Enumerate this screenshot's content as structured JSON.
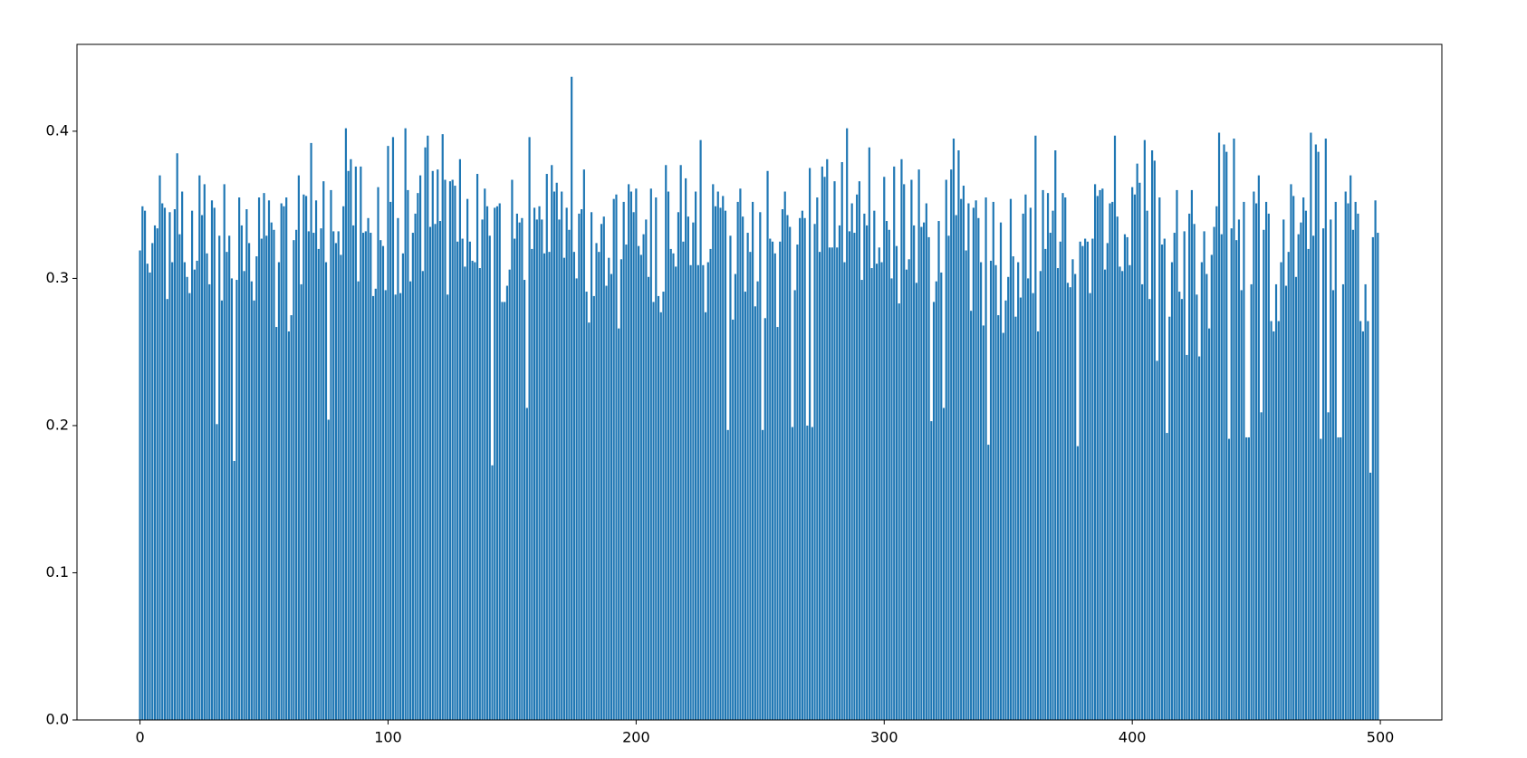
{
  "chart_data": {
    "type": "bar",
    "color": "#1f77b4",
    "bar_width": 0.8,
    "x": [
      0,
      1,
      2,
      3,
      4,
      5,
      6,
      7,
      8,
      9,
      10,
      11,
      12,
      13,
      14,
      15,
      16,
      17,
      18,
      19,
      20,
      21,
      22,
      23,
      24,
      25,
      26,
      27,
      28,
      29,
      30,
      31,
      32,
      33,
      34,
      35,
      36,
      37,
      38,
      39,
      40,
      41,
      42,
      43,
      44,
      45,
      46,
      47,
      48,
      49,
      50,
      51,
      52,
      53,
      54,
      55,
      56,
      57,
      58,
      59,
      60,
      61,
      62,
      63,
      64,
      65,
      66,
      67,
      68,
      69,
      70,
      71,
      72,
      73,
      74,
      75,
      76,
      77,
      78,
      79,
      80,
      81,
      82,
      83,
      84,
      85,
      86,
      87,
      88,
      89,
      90,
      91,
      92,
      93,
      94,
      95,
      96,
      97,
      98,
      99,
      100,
      101,
      102,
      103,
      104,
      105,
      106,
      107,
      108,
      109,
      110,
      111,
      112,
      113,
      114,
      115,
      116,
      117,
      118,
      119,
      120,
      121,
      122,
      123,
      124,
      125,
      126,
      127,
      128,
      129,
      130,
      131,
      132,
      133,
      134,
      135,
      136,
      137,
      138,
      139,
      140,
      141,
      142,
      143,
      144,
      145,
      146,
      147,
      148,
      149,
      150,
      151,
      152,
      153,
      154,
      155,
      156,
      157,
      158,
      159,
      160,
      161,
      162,
      163,
      164,
      165,
      166,
      167,
      168,
      169,
      170,
      171,
      172,
      173,
      174,
      175,
      176,
      177,
      178,
      179,
      180,
      181,
      182,
      183,
      184,
      185,
      186,
      187,
      188,
      189,
      190,
      191,
      192,
      193,
      194,
      195,
      196,
      197,
      198,
      199,
      200,
      201,
      202,
      203,
      204,
      205,
      206,
      207,
      208,
      209,
      210,
      211,
      212,
      213,
      214,
      215,
      216,
      217,
      218,
      219,
      220,
      221,
      222,
      223,
      224,
      225,
      226,
      227,
      228,
      229,
      230,
      231,
      232,
      233,
      234,
      235,
      236,
      237,
      238,
      239,
      240,
      241,
      242,
      243,
      244,
      245,
      246,
      247,
      248,
      249,
      250,
      251,
      252,
      253,
      254,
      255,
      256,
      257,
      258,
      259,
      260,
      261,
      262,
      263,
      264,
      265,
      266,
      267,
      268,
      269,
      270,
      271,
      272,
      273,
      274,
      275,
      276,
      277,
      278,
      279,
      280,
      281,
      282,
      283,
      284,
      285,
      286,
      287,
      288,
      289,
      290,
      291,
      292,
      293,
      294,
      295,
      296,
      297,
      298,
      299,
      300,
      301,
      302,
      303,
      304,
      305,
      306,
      307,
      308,
      309,
      310,
      311,
      312,
      313,
      314,
      315,
      316,
      317,
      318,
      319,
      320,
      321,
      322,
      323,
      324,
      325,
      326,
      327,
      328,
      329,
      330,
      331,
      332,
      333,
      334,
      335,
      336,
      337,
      338,
      339,
      340,
      341,
      342,
      343,
      344,
      345,
      346,
      347,
      348,
      349,
      350,
      351,
      352,
      353,
      354,
      355,
      356,
      357,
      358,
      359,
      360,
      361,
      362,
      363,
      364,
      365,
      366,
      367,
      368,
      369,
      370,
      371,
      372,
      373,
      374,
      375,
      376,
      377,
      378,
      379,
      380,
      381,
      382,
      383,
      384,
      385,
      386,
      387,
      388,
      389,
      390,
      391,
      392,
      393,
      394,
      395,
      396,
      397,
      398,
      399,
      400,
      401,
      402,
      403,
      404,
      405,
      406,
      407,
      408,
      409,
      410,
      411,
      412,
      413,
      414,
      415,
      416,
      417,
      418,
      419,
      420,
      421,
      422,
      423,
      424,
      425,
      426,
      427,
      428,
      429,
      430,
      431,
      432,
      433,
      434,
      435,
      436,
      437,
      438,
      439,
      440,
      441,
      442,
      443,
      444,
      445,
      446,
      447,
      448,
      449,
      450,
      451,
      452,
      453,
      454,
      455,
      456,
      457,
      458,
      459,
      460,
      461,
      462,
      463,
      464,
      465,
      466,
      467,
      468,
      469,
      470,
      471,
      472,
      473,
      474,
      475,
      476,
      477,
      478,
      479,
      480,
      481,
      482,
      483,
      484,
      485,
      486,
      487,
      488,
      489,
      490,
      491,
      492,
      493,
      494,
      495,
      496,
      497,
      498,
      499
    ],
    "values": [
      0.319,
      0.349,
      0.346,
      0.31,
      0.304,
      0.324,
      0.336,
      0.334,
      0.37,
      0.351,
      0.348,
      0.286,
      0.345,
      0.311,
      0.347,
      0.385,
      0.33,
      0.359,
      0.311,
      0.301,
      0.29,
      0.346,
      0.306,
      0.312,
      0.37,
      0.343,
      0.364,
      0.317,
      0.296,
      0.353,
      0.348,
      0.201,
      0.329,
      0.285,
      0.364,
      0.318,
      0.329,
      0.3,
      0.176,
      0.299,
      0.355,
      0.336,
      0.305,
      0.347,
      0.324,
      0.298,
      0.285,
      0.315,
      0.355,
      0.327,
      0.358,
      0.329,
      0.353,
      0.338,
      0.333,
      0.267,
      0.311,
      0.351,
      0.349,
      0.355,
      0.264,
      0.275,
      0.326,
      0.333,
      0.37,
      0.296,
      0.357,
      0.356,
      0.332,
      0.392,
      0.331,
      0.353,
      0.32,
      0.334,
      0.366,
      0.311,
      0.204,
      0.36,
      0.332,
      0.324,
      0.332,
      0.316,
      0.349,
      0.402,
      0.373,
      0.381,
      0.336,
      0.376,
      0.298,
      0.376,
      0.331,
      0.332,
      0.341,
      0.331,
      0.288,
      0.293,
      0.362,
      0.326,
      0.322,
      0.292,
      0.39,
      0.352,
      0.396,
      0.289,
      0.341,
      0.29,
      0.317,
      0.402,
      0.36,
      0.298,
      0.331,
      0.344,
      0.358,
      0.37,
      0.305,
      0.389,
      0.397,
      0.335,
      0.373,
      0.337,
      0.374,
      0.339,
      0.398,
      0.367,
      0.289,
      0.366,
      0.367,
      0.363,
      0.325,
      0.381,
      0.327,
      0.308,
      0.354,
      0.325,
      0.312,
      0.311,
      0.371,
      0.307,
      0.34,
      0.361,
      0.349,
      0.329,
      0.173,
      0.348,
      0.349,
      0.351,
      0.284,
      0.284,
      0.295,
      0.306,
      0.367,
      0.327,
      0.344,
      0.338,
      0.341,
      0.299,
      0.212,
      0.396,
      0.32,
      0.348,
      0.34,
      0.349,
      0.34,
      0.317,
      0.371,
      0.318,
      0.377,
      0.359,
      0.365,
      0.34,
      0.359,
      0.314,
      0.348,
      0.333,
      0.437,
      0.318,
      0.3,
      0.344,
      0.347,
      0.374,
      0.291,
      0.27,
      0.345,
      0.288,
      0.324,
      0.318,
      0.337,
      0.342,
      0.295,
      0.314,
      0.303,
      0.354,
      0.357,
      0.266,
      0.313,
      0.352,
      0.323,
      0.364,
      0.359,
      0.345,
      0.361,
      0.322,
      0.316,
      0.33,
      0.34,
      0.301,
      0.361,
      0.284,
      0.355,
      0.288,
      0.277,
      0.291,
      0.377,
      0.359,
      0.32,
      0.317,
      0.308,
      0.345,
      0.377,
      0.325,
      0.368,
      0.342,
      0.309,
      0.338,
      0.359,
      0.309,
      0.394,
      0.309,
      0.277,
      0.311,
      0.32,
      0.364,
      0.349,
      0.359,
      0.348,
      0.356,
      0.346,
      0.197,
      0.329,
      0.272,
      0.303,
      0.352,
      0.361,
      0.342,
      0.291,
      0.331,
      0.318,
      0.352,
      0.281,
      0.298,
      0.345,
      0.197,
      0.273,
      0.373,
      0.327,
      0.325,
      0.317,
      0.267,
      0.325,
      0.347,
      0.359,
      0.343,
      0.335,
      0.199,
      0.292,
      0.323,
      0.341,
      0.346,
      0.341,
      0.2,
      0.375,
      0.199,
      0.337,
      0.355,
      0.318,
      0.376,
      0.369,
      0.381,
      0.321,
      0.321,
      0.366,
      0.321,
      0.336,
      0.379,
      0.311,
      0.402,
      0.332,
      0.351,
      0.331,
      0.357,
      0.366,
      0.299,
      0.344,
      0.336,
      0.389,
      0.307,
      0.346,
      0.31,
      0.321,
      0.311,
      0.369,
      0.339,
      0.333,
      0.3,
      0.376,
      0.322,
      0.283,
      0.381,
      0.364,
      0.306,
      0.313,
      0.367,
      0.336,
      0.297,
      0.374,
      0.335,
      0.338,
      0.351,
      0.328,
      0.203,
      0.284,
      0.298,
      0.339,
      0.304,
      0.212,
      0.367,
      0.329,
      0.374,
      0.395,
      0.343,
      0.387,
      0.354,
      0.363,
      0.319,
      0.351,
      0.278,
      0.348,
      0.353,
      0.341,
      0.311,
      0.268,
      0.355,
      0.187,
      0.312,
      0.352,
      0.309,
      0.275,
      0.338,
      0.263,
      0.285,
      0.301,
      0.354,
      0.315,
      0.274,
      0.311,
      0.287,
      0.344,
      0.357,
      0.3,
      0.348,
      0.29,
      0.397,
      0.264,
      0.305,
      0.36,
      0.32,
      0.358,
      0.331,
      0.346,
      0.387,
      0.307,
      0.325,
      0.358,
      0.355,
      0.297,
      0.294,
      0.313,
      0.303,
      0.186,
      0.325,
      0.322,
      0.327,
      0.325,
      0.29,
      0.327,
      0.364,
      0.356,
      0.36,
      0.361,
      0.306,
      0.324,
      0.351,
      0.352,
      0.397,
      0.342,
      0.308,
      0.305,
      0.33,
      0.328,
      0.309,
      0.362,
      0.357,
      0.378,
      0.365,
      0.296,
      0.394,
      0.346,
      0.286,
      0.387,
      0.38,
      0.244,
      0.355,
      0.323,
      0.327,
      0.195,
      0.274,
      0.311,
      0.331,
      0.36,
      0.291,
      0.286,
      0.332,
      0.248,
      0.344,
      0.36,
      0.337,
      0.289,
      0.247,
      0.311,
      0.332,
      0.303,
      0.266,
      0.316,
      0.335,
      0.349,
      0.399,
      0.33,
      0.391,
      0.386,
      0.191,
      0.334,
      0.395,
      0.326,
      0.34,
      0.292,
      0.352,
      0.192,
      0.192,
      0.296,
      0.359,
      0.351,
      0.37,
      0.209,
      0.333,
      0.352,
      0.344,
      0.271,
      0.264,
      0.296,
      0.271,
      0.311,
      0.34,
      0.295,
      0.318,
      0.364,
      0.356,
      0.301,
      0.33,
      0.338,
      0.355,
      0.346,
      0.32,
      0.399,
      0.329,
      0.391,
      0.386,
      0.191,
      0.334,
      0.395,
      0.209,
      0.34,
      0.292,
      0.352,
      0.192,
      0.192,
      0.296,
      0.359,
      0.351,
      0.37,
      0.333,
      0.352,
      0.344,
      0.271,
      0.264,
      0.296,
      0.271,
      0.168,
      0.328,
      0.353,
      0.331
    ],
    "xlim": [
      -25.4,
      524.8
    ],
    "ylim": [
      0,
      0.459
    ],
    "xticks": [
      0,
      100,
      200,
      300,
      400,
      500
    ],
    "yticks": [
      {
        "value": 0,
        "label": "0.0"
      },
      0.1,
      0.2,
      0.3,
      0.4
    ],
    "grid": false
  }
}
